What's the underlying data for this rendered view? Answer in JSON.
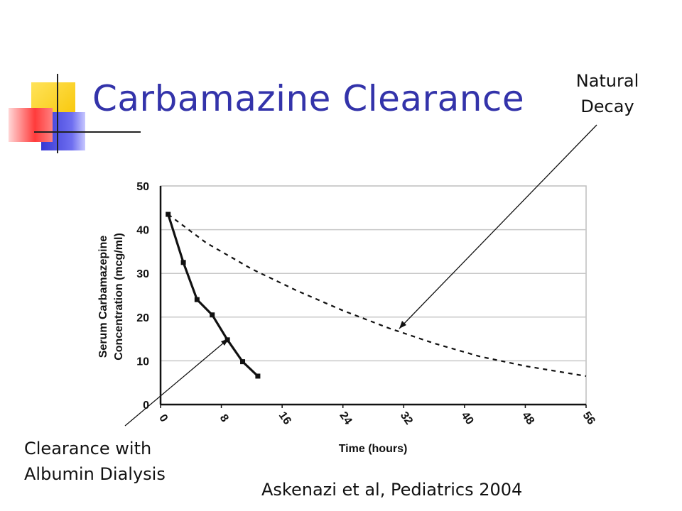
{
  "slide": {
    "title": "Carbamazine Clearance",
    "citation": "Askenazi et al, Pediatrics 2004",
    "callout_natural": "Natural\nDecay",
    "callout_albumin": "Clearance with\nAlbumin Dialysis"
  },
  "chart_data": {
    "type": "line",
    "title": "",
    "xlabel": "Time (hours)",
    "ylabel_line1": "Serum Carbamazepine",
    "ylabel_line2": "Concentration (mcg/ml)",
    "xlim": [
      0,
      56
    ],
    "ylim": [
      0,
      50
    ],
    "x_ticks": [
      0,
      8,
      16,
      24,
      32,
      40,
      48,
      56
    ],
    "y_ticks": [
      0,
      10,
      20,
      30,
      40,
      50
    ],
    "grid": true,
    "legend": "none",
    "series": [
      {
        "style": "solid-markers",
        "color": "#111111",
        "points": [
          [
            1,
            43.5
          ],
          [
            3,
            32.5
          ],
          [
            4.8,
            24
          ],
          [
            6.8,
            20.5
          ],
          [
            8.8,
            14.8
          ],
          [
            10.8,
            9.8
          ],
          [
            12.8,
            6.5
          ]
        ]
      },
      {
        "style": "dashed",
        "color": "#111111",
        "points": [
          [
            1,
            43.5
          ],
          [
            6,
            37
          ],
          [
            12,
            31
          ],
          [
            18,
            26
          ],
          [
            24,
            21.5
          ],
          [
            30,
            17.5
          ],
          [
            36,
            14
          ],
          [
            42,
            11
          ],
          [
            48,
            8.8
          ],
          [
            56,
            6.5
          ]
        ]
      }
    ]
  },
  "colors": {
    "title": "#3333aa",
    "grid": "#c8c8c8",
    "deco_yellow": "#ffd21f",
    "deco_blue": "#3a3ad8",
    "deco_red": "#ff4a4a"
  }
}
